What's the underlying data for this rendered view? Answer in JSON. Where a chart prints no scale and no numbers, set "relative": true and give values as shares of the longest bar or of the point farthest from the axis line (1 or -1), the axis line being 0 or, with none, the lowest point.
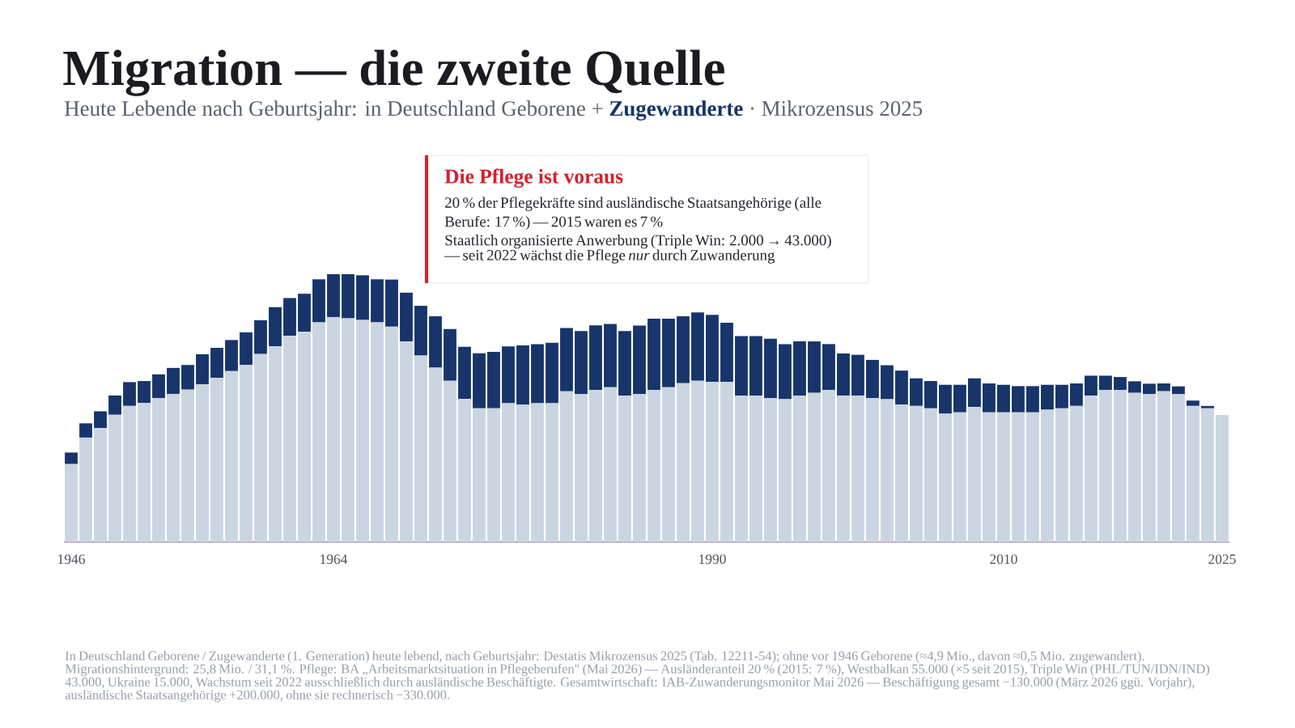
{
  "chart_data": {
    "type": "bar",
    "stacked": true,
    "relative": true,
    "title": "Migration — die zweite Quelle",
    "subtitle": "Heute Lebende nach Geburtsjahr: in Deutschland Geborene + **Zugewanderte** · Mikrozensus 2025",
    "categories": [
      "1946",
      null,
      null,
      null,
      null,
      null,
      null,
      null,
      null,
      null,
      null,
      null,
      null,
      null,
      null,
      null,
      null,
      null,
      "1964",
      null,
      null,
      null,
      null,
      null,
      null,
      null,
      null,
      null,
      null,
      null,
      null,
      null,
      null,
      null,
      null,
      null,
      null,
      null,
      null,
      null,
      null,
      null,
      null,
      null,
      "1990",
      null,
      null,
      null,
      null,
      null,
      null,
      null,
      null,
      null,
      null,
      null,
      null,
      null,
      null,
      null,
      null,
      null,
      null,
      null,
      "2010",
      null,
      null,
      null,
      null,
      null,
      null,
      null,
      null,
      null,
      null,
      null,
      null,
      null,
      null,
      "2025"
    ],
    "series": [
      {
        "color": "#cbd5e1",
        "values": [
          0.291,
          0.39,
          0.425,
          0.475,
          0.508,
          0.519,
          0.537,
          0.553,
          0.569,
          0.589,
          0.613,
          0.638,
          0.661,
          0.702,
          0.731,
          0.77,
          0.785,
          0.82,
          0.84,
          0.835,
          0.829,
          0.82,
          0.804,
          0.749,
          0.696,
          0.651,
          0.602,
          0.534,
          0.499,
          0.499,
          0.518,
          0.513,
          0.518,
          0.518,
          0.563,
          0.552,
          0.568,
          0.578,
          0.547,
          0.552,
          0.568,
          0.578,
          0.593,
          0.602,
          0.598,
          0.598,
          0.547,
          0.547,
          0.537,
          0.533,
          0.547,
          0.557,
          0.568,
          0.547,
          0.547,
          0.537,
          0.533,
          0.513,
          0.508,
          0.499,
          0.479,
          0.484,
          0.504,
          0.484,
          0.484,
          0.484,
          0.484,
          0.494,
          0.499,
          0.508,
          0.547,
          0.568,
          0.568,
          0.557,
          0.552,
          0.563,
          0.552,
          0.508,
          0.499,
          0.474
        ]
      },
      {
        "color": "#17356b",
        "values": [
          0.043,
          0.053,
          0.063,
          0.072,
          0.089,
          0.082,
          0.089,
          0.097,
          0.092,
          0.112,
          0.112,
          0.116,
          0.122,
          0.126,
          0.146,
          0.141,
          0.142,
          0.161,
          0.16,
          0.165,
          0.167,
          0.161,
          0.176,
          0.182,
          0.186,
          0.192,
          0.193,
          0.195,
          0.206,
          0.211,
          0.212,
          0.221,
          0.221,
          0.226,
          0.236,
          0.236,
          0.241,
          0.236,
          0.241,
          0.256,
          0.266,
          0.256,
          0.25,
          0.255,
          0.25,
          0.221,
          0.222,
          0.222,
          0.222,
          0.206,
          0.202,
          0.192,
          0.171,
          0.157,
          0.152,
          0.143,
          0.127,
          0.127,
          0.103,
          0.102,
          0.108,
          0.103,
          0.107,
          0.108,
          0.103,
          0.098,
          0.098,
          0.093,
          0.088,
          0.084,
          0.074,
          0.053,
          0.048,
          0.043,
          0.039,
          0.029,
          0.029,
          0.02,
          0.009,
          null
        ]
      }
    ],
    "annotations": [
      "Die Pflege ist voraus",
      "20 % der Pflegekräfte sind ausländische Staatsangehörige (alle Berufe: 17 %) — 2015 waren es 7 %",
      "Staatlich organisierte Anwerbung (Triple Win: 2.000 → 43.000) — seit 2022 wächst die Pflege *nur* durch Zuwanderung",
      "In Deutschland Geborene / Zugewanderte (1. Generation) heute lebend, nach Geburtsjahr: Destatis Mikrozensus 2025 (Tab. 12211-54); ohne vor 1946 Geborene (≈4,9 Mio., davon ≈0,5 Mio. zugewandert). Migrationshintergrund: 25,8 Mio. / 31,1 %. Pflege: BA „Arbeitsmarktsituation in Pflegeberufen\" (Mai 2026) — Ausländeranteil 20 % (2015: 7 %), Westbalkan 55.000 (×5 seit 2015), Triple Win (PHL/TUN/IDN/IND) 43.000, Ukraine 15.000, Wachstum seit 2022 ausschließlich durch ausländische Beschäftigte. Gesamtwirtschaft: IAB-Zuwanderungsmonitor Mai 2026 — Beschäftigung gesamt −130.000 (März 2026 ggü. Vorjahr), ausländische Staatsangehörige +200.000, ohne sie rechnerisch −330.000."
    ]
  }
}
